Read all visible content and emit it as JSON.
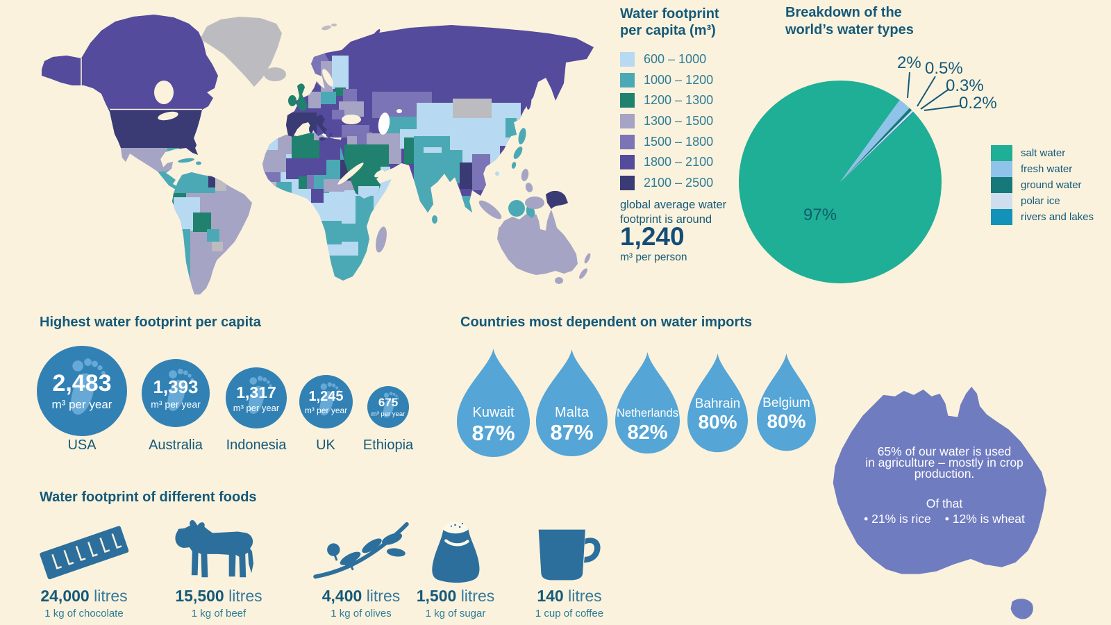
{
  "map": {
    "legend_title_line1": "Water footprint",
    "legend_title_line2": "per capita (m³)",
    "bins": [
      {
        "range": "600 – 1000",
        "color": "#b7d9f2"
      },
      {
        "range": "1000 – 1200",
        "color": "#4ba9b5"
      },
      {
        "range": "1200 – 1300",
        "color": "#20816e"
      },
      {
        "range": "1300 – 1500",
        "color": "#a5a4c4"
      },
      {
        "range": "1500 – 1800",
        "color": "#7b74b6"
      },
      {
        "range": "1800 – 2100",
        "color": "#544b9d"
      },
      {
        "range": "2100 – 2500",
        "color": "#3a3a74"
      }
    ],
    "no_data_color": "#bcbcc0",
    "note_line1": "global average water",
    "note_line2": "footprint is around",
    "average_value": "1,240",
    "average_unit": "m³ per person"
  },
  "pie": {
    "title_line1": "Breakdown of the",
    "title_line2": "world’s water types",
    "slices": [
      {
        "label": "salt water",
        "value": 97,
        "display": "97%",
        "color": "#1fae96"
      },
      {
        "label": "fresh water",
        "value": 2,
        "display": "2%",
        "color": "#8fc3ea"
      },
      {
        "label": "ground water",
        "value": 0.5,
        "display": "0.5%",
        "color": "#17787a"
      },
      {
        "label": "polar ice",
        "value": 0.3,
        "display": "0.3%",
        "color": "#cfdeee"
      },
      {
        "label": "rivers and lakes",
        "value": 0.2,
        "display": "0.2%",
        "color": "#1292b8"
      }
    ]
  },
  "footprints": {
    "heading": "Highest water footprint per capita",
    "items": [
      {
        "country": "USA",
        "value": "2,483",
        "unit": "m³ per year"
      },
      {
        "country": "Australia",
        "value": "1,393",
        "unit": "m³ per year"
      },
      {
        "country": "Indonesia",
        "value": "1,317",
        "unit": "m³ per year"
      },
      {
        "country": "UK",
        "value": "1,245",
        "unit": "m³ per year"
      },
      {
        "country": "Ethiopia",
        "value": "675",
        "unit": "m³ per year"
      }
    ]
  },
  "imports": {
    "heading": "Countries most dependent on water imports",
    "items": [
      {
        "country": "Kuwait",
        "percent": "87%"
      },
      {
        "country": "Malta",
        "percent": "87%"
      },
      {
        "country": "Netherlands",
        "percent": "82%"
      },
      {
        "country": "Bahrain",
        "percent": "80%"
      },
      {
        "country": "Belgium",
        "percent": "80%"
      }
    ]
  },
  "australia_fact": {
    "line1": "65% of our water is used",
    "line2": "in agriculture – mostly in crop",
    "line3": "production.",
    "line4": "Of that",
    "bullet1": "• 21% is rice",
    "bullet2": "• 12% is wheat"
  },
  "foods": {
    "heading": "Water footprint of different foods",
    "items": [
      {
        "icon": "chocolate-bar",
        "value": "24,000",
        "unit": "litres",
        "desc": "1 kg of chocolate"
      },
      {
        "icon": "cow",
        "value": "15,500",
        "unit": "litres",
        "desc": "1 kg of beef"
      },
      {
        "icon": "olive-branch",
        "value": "4,400",
        "unit": "litres",
        "desc": "1 kg of olives"
      },
      {
        "icon": "sugar-bag",
        "value": "1,500",
        "unit": "litres",
        "desc": "1 kg of sugar"
      },
      {
        "icon": "coffee-mug",
        "value": "140",
        "unit": "litres",
        "desc": "1 cup of coffee"
      }
    ]
  },
  "chart_data": [
    {
      "type": "heatmap",
      "variant": "choropleth-world-map",
      "title": "Water footprint per capita (m³)",
      "bins": [
        "600 – 1000",
        "1000 – 1200",
        "1200 – 1300",
        "1300 – 1500",
        "1500 – 1800",
        "1800 – 2100",
        "2100 – 2500"
      ],
      "bin_colors": [
        "#b7d9f2",
        "#4ba9b5",
        "#20816e",
        "#a5a4c4",
        "#7b74b6",
        "#544b9d",
        "#3a3a74"
      ],
      "no_data_color": "#bcbcc0",
      "annotation": "global average water footprint is around 1,240 m³ per person",
      "sample_regions": {
        "USA": "2100 – 2500",
        "Canada": "1800 – 2100",
        "Russia": "1800 – 2100",
        "Greenland": "no data",
        "Mongolia": "no data",
        "China": "600 – 1000",
        "India": "1000 – 1200",
        "Australia": "1300 – 1500",
        "Brazil": "1300 – 1500",
        "Mexico": "1300 – 1500",
        "Saudi Arabia": "1200 – 1300",
        "Algeria": "1200 – 1300",
        "Pakistan": "1200 – 1300",
        "UK": "1200 – 1300",
        "Spain": "2100 – 2500",
        "Italy": "2100 – 2500",
        "France": "1800 – 2100",
        "Sudan": "2100 – 2500",
        "Thailand": "2100 – 2500",
        "Ethiopia/East Africa": "600 – 1000"
      }
    },
    {
      "type": "pie",
      "title": "Breakdown of the world’s water types",
      "labels": [
        "salt water",
        "fresh water",
        "ground water",
        "polar ice",
        "rivers and lakes"
      ],
      "values": [
        97,
        2,
        0.5,
        0.3,
        0.2
      ],
      "colors": [
        "#1fae96",
        "#8fc3ea",
        "#17787a",
        "#cfdeee",
        "#1292b8"
      ],
      "legend_position": "right",
      "start_angle_deg": 36,
      "annotations": [
        "97%",
        "2%",
        "0.5%",
        "0.3%",
        "0.2%"
      ]
    },
    {
      "type": "bar",
      "variant": "proportional-circles",
      "title": "Highest water footprint per capita",
      "categories": [
        "USA",
        "Australia",
        "Indonesia",
        "UK",
        "Ethiopia"
      ],
      "values": [
        2483,
        1393,
        1317,
        1245,
        675
      ],
      "unit": "m³ per year"
    },
    {
      "type": "bar",
      "variant": "water-drop-pictogram",
      "title": "Countries most dependent on water imports",
      "categories": [
        "Kuwait",
        "Malta",
        "Netherlands",
        "Bahrain",
        "Belgium"
      ],
      "values": [
        87,
        87,
        82,
        80,
        80
      ],
      "unit": "%"
    },
    {
      "type": "bar",
      "variant": "icon-pictogram",
      "title": "Water footprint of different foods",
      "categories": [
        "1 kg of chocolate",
        "1 kg of beef",
        "1 kg of olives",
        "1 kg of sugar",
        "1 cup of coffee"
      ],
      "values": [
        24000,
        15500,
        4400,
        1500,
        140
      ],
      "unit": "litres"
    }
  ]
}
